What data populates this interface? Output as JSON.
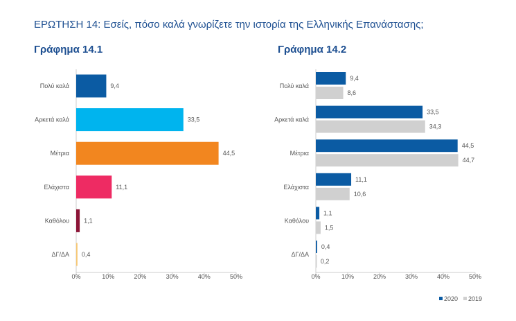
{
  "question": "ΕΡΩΤΗΣΗ 14: Εσείς, πόσο καλά γνωρίζετε την ιστορία της Ελληνικής Επανάστασης;",
  "chart_data": [
    {
      "type": "bar",
      "orientation": "horizontal",
      "title": "Γράφημα 14.1",
      "categories": [
        "Πολύ καλά",
        "Αρκετά καλά",
        "Μέτρια",
        "Ελάχιστα",
        "Καθόλου",
        "ΔΓ/ΔΑ"
      ],
      "values": [
        9.4,
        33.5,
        44.5,
        11.1,
        1.1,
        0.4
      ],
      "labels": [
        "9,4",
        "33,5",
        "44,5",
        "11,1",
        "1,1",
        "0,4"
      ],
      "colors": [
        "#0b5ba3",
        "#00b4ee",
        "#f2861f",
        "#ee2b63",
        "#8c1537",
        "#f6c774"
      ],
      "xlim": [
        0,
        50
      ],
      "xticks": [
        "0%",
        "10%",
        "20%",
        "30%",
        "40%",
        "50%"
      ],
      "grid": false
    },
    {
      "type": "bar",
      "orientation": "horizontal",
      "title": "Γράφημα 14.2",
      "categories": [
        "Πολύ καλά",
        "Αρκετά καλά",
        "Μέτρια",
        "Ελάχιστα",
        "Καθόλου",
        "ΔΓ/ΔΑ"
      ],
      "series": [
        {
          "name": "2020",
          "values": [
            9.4,
            33.5,
            44.5,
            11.1,
            1.1,
            0.4
          ],
          "labels": [
            "9,4",
            "33,5",
            "44,5",
            "11,1",
            "1,1",
            "0,4"
          ],
          "color": "#0b5ba3"
        },
        {
          "name": "2019",
          "values": [
            8.6,
            34.3,
            44.7,
            10.6,
            1.5,
            0.2
          ],
          "labels": [
            "8,6",
            "34,3",
            "44,7",
            "10,6",
            "1,5",
            "0,2"
          ],
          "color": "#d0d0d0"
        }
      ],
      "xlim": [
        0,
        50
      ],
      "xticks": [
        "0%",
        "10%",
        "20%",
        "30%",
        "40%",
        "50%"
      ],
      "grid": false,
      "legend": "bottom-right"
    }
  ]
}
